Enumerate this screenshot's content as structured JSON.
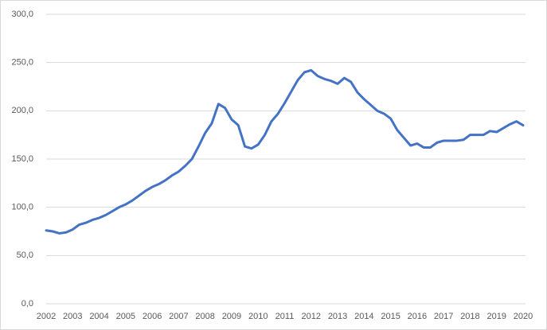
{
  "chart_data": {
    "type": "line",
    "x": [
      2002,
      2002.25,
      2002.5,
      2002.75,
      2003,
      2003.25,
      2003.5,
      2003.75,
      2004,
      2004.25,
      2004.5,
      2004.75,
      2005,
      2005.25,
      2005.5,
      2005.75,
      2006,
      2006.25,
      2006.5,
      2006.75,
      2007,
      2007.25,
      2007.5,
      2007.75,
      2008,
      2008.25,
      2008.5,
      2008.75,
      2009,
      2009.25,
      2009.5,
      2009.75,
      2010,
      2010.25,
      2010.5,
      2010.75,
      2011,
      2011.25,
      2011.5,
      2011.75,
      2012,
      2012.25,
      2012.5,
      2012.75,
      2013,
      2013.25,
      2013.5,
      2013.75,
      2014,
      2014.25,
      2014.5,
      2014.75,
      2015,
      2015.25,
      2015.5,
      2015.75,
      2016,
      2016.25,
      2016.5,
      2016.75,
      2017,
      2017.25,
      2017.5,
      2017.75,
      2018,
      2018.25,
      2018.5,
      2018.75,
      2019,
      2019.25,
      2019.5,
      2019.75,
      2020
    ],
    "series": [
      {
        "color": "#4472c4",
        "values": [
          76,
          75,
          73,
          74,
          77,
          82,
          84,
          87,
          89,
          92,
          96,
          100,
          103,
          107,
          112,
          117,
          121,
          124,
          128,
          133,
          137,
          143,
          150,
          163,
          177,
          187,
          207,
          203,
          191,
          185,
          163,
          161,
          165,
          175,
          189,
          197,
          208,
          220,
          232,
          240,
          242,
          236,
          233,
          231,
          228,
          234,
          230,
          219,
          212,
          206,
          200,
          197,
          192,
          180,
          172,
          164,
          166,
          162,
          162,
          167,
          169,
          169,
          169,
          170,
          175,
          175,
          175,
          179,
          178,
          182,
          186,
          189,
          185
        ]
      }
    ],
    "xlim": [
      2002,
      2020
    ],
    "xticks": [
      2002,
      2003,
      2004,
      2005,
      2006,
      2007,
      2008,
      2009,
      2010,
      2011,
      2012,
      2013,
      2014,
      2015,
      2016,
      2017,
      2018,
      2019,
      2020
    ],
    "ylim": [
      0,
      300
    ],
    "yticks": [
      {
        "value": 0,
        "label": "0,0"
      },
      {
        "value": 50,
        "label": "50,0"
      },
      {
        "value": 100,
        "label": "100,0"
      },
      {
        "value": 150,
        "label": "150,0"
      },
      {
        "value": 200,
        "label": "200,0"
      },
      {
        "value": 250,
        "label": "250,0"
      },
      {
        "value": 300,
        "label": "300,0"
      }
    ],
    "grid": true
  }
}
